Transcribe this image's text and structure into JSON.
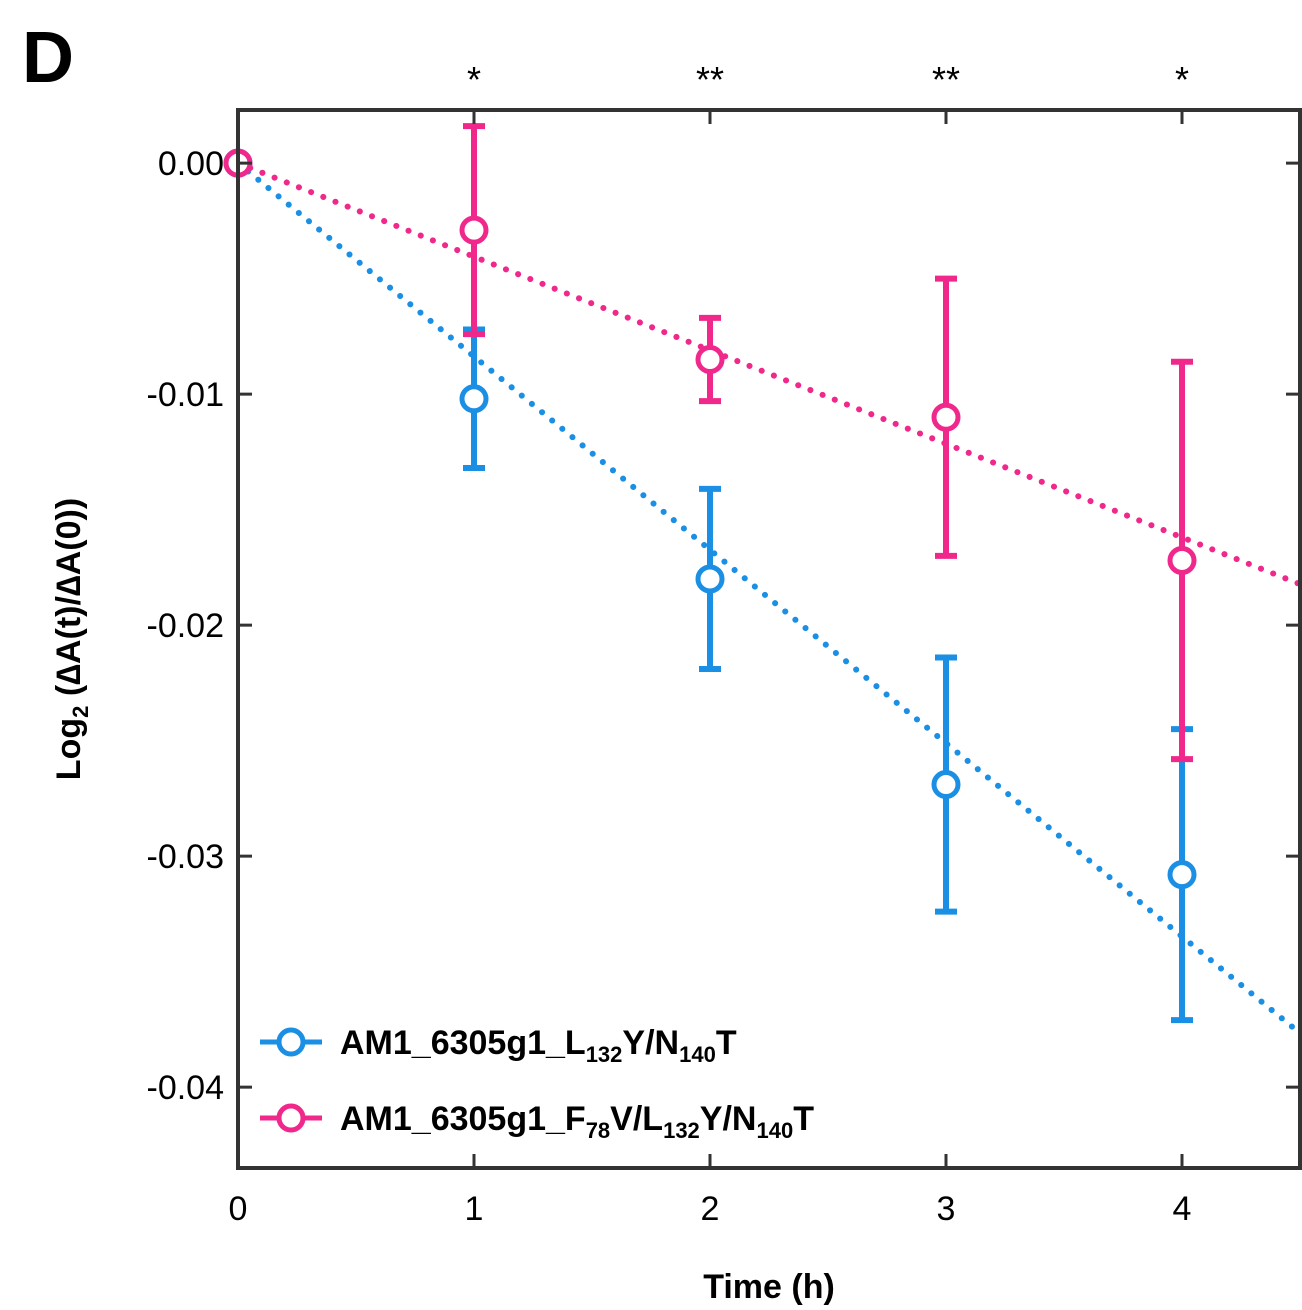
{
  "chart_data": {
    "type": "scatter",
    "panel_label": "D",
    "xlabel": "Time (h)",
    "ylabel_parts": [
      "Log",
      "2",
      " (",
      "∆",
      "A(t)/",
      "∆",
      "A(0))"
    ],
    "xlim": [
      0,
      4.5
    ],
    "ylim": [
      -0.0435,
      0.0023
    ],
    "x_ticks": [
      0,
      1,
      2,
      3,
      4
    ],
    "x_tick_labels": [
      "0",
      "1",
      "2",
      "3",
      "4"
    ],
    "y_ticks": [
      0.0,
      -0.01,
      -0.02,
      -0.03,
      -0.04
    ],
    "y_tick_labels": [
      "0.00",
      "-0.01",
      "-0.02",
      "-0.03",
      "-0.04"
    ],
    "significance": [
      {
        "x": 1,
        "label": "*"
      },
      {
        "x": 2,
        "label": "**"
      },
      {
        "x": 3,
        "label": "**"
      },
      {
        "x": 4,
        "label": "*"
      }
    ],
    "legend_position": "bottom-left",
    "series": [
      {
        "name": "AM1_6305g1_L132Y/N140T",
        "name_parts": [
          [
            "AM1_6305g1_L",
            false
          ],
          [
            "132",
            true
          ],
          [
            "Y/N",
            false
          ],
          [
            "140",
            true
          ],
          [
            "T",
            false
          ]
        ],
        "color": "#1a8fe3",
        "x": [
          0,
          1,
          2,
          3,
          4
        ],
        "y": [
          0.0,
          -0.0102,
          -0.018,
          -0.0269,
          -0.0308
        ],
        "error": [
          0.0,
          0.003,
          0.0039,
          0.0055,
          0.0063
        ],
        "fit_slope": -0.00837
      },
      {
        "name": "AM1_6305g1_F78V/L132Y/N140T",
        "name_parts": [
          [
            "AM1_6305g1_F",
            false
          ],
          [
            "78",
            true
          ],
          [
            "V/L",
            false
          ],
          [
            "132",
            true
          ],
          [
            "Y/N",
            false
          ],
          [
            "140",
            true
          ],
          [
            "T",
            false
          ]
        ],
        "color": "#f0288c",
        "x": [
          0,
          1,
          2,
          3,
          4
        ],
        "y": [
          0.0,
          -0.0029,
          -0.0085,
          -0.011,
          -0.0172
        ],
        "error": [
          0.0,
          0.0045,
          0.0018,
          0.006,
          0.0086
        ],
        "fit_slope": -0.00405
      }
    ]
  }
}
